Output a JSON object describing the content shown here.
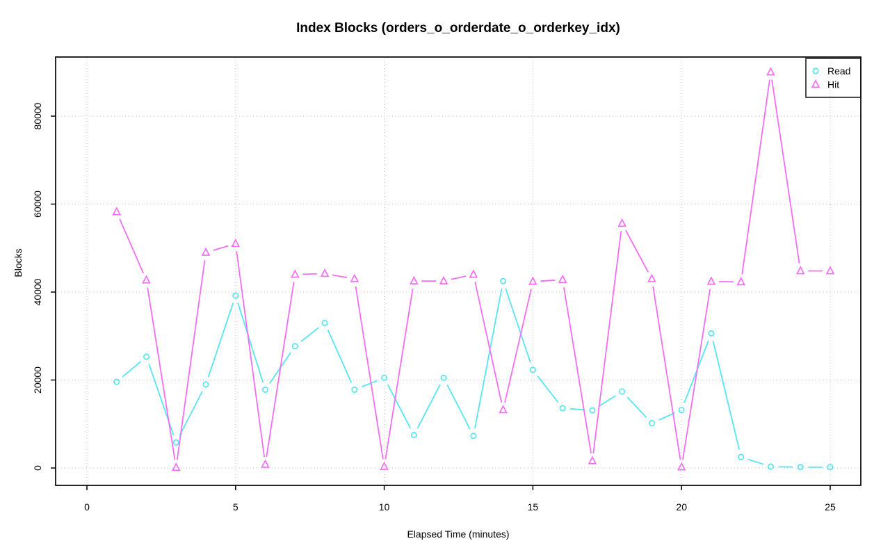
{
  "figure": {
    "background": "#ffffff"
  },
  "chart_data": {
    "type": "line",
    "title": "Index Blocks (orders_o_orderdate_o_orderkey_idx)",
    "xlabel": "Elapsed Time (minutes)",
    "ylabel": "Blocks",
    "x": [
      1,
      2,
      3,
      4,
      5,
      6,
      7,
      8,
      9,
      10,
      11,
      12,
      13,
      14,
      15,
      16,
      17,
      18,
      19,
      20,
      21,
      22,
      23,
      24,
      25
    ],
    "series": [
      {
        "name": "Read",
        "marker": "circle",
        "color": "#55E6F2",
        "values": [
          19600,
          25300,
          5800,
          19000,
          39200,
          17800,
          27700,
          33000,
          17800,
          20500,
          7500,
          20500,
          7300,
          42500,
          22300,
          13600,
          13100,
          17400,
          10200,
          13200,
          30600,
          2500,
          300,
          200,
          200
        ]
      },
      {
        "name": "Hit",
        "marker": "triangle",
        "color": "#F36EF3",
        "values": [
          58200,
          42700,
          100,
          49000,
          51000,
          800,
          44000,
          44200,
          43000,
          300,
          42500,
          42500,
          44000,
          13200,
          42400,
          42800,
          1600,
          55600,
          43000,
          200,
          42400,
          42300,
          90000,
          44800,
          44800
        ]
      }
    ],
    "xticks": [
      0,
      5,
      10,
      15,
      20,
      25
    ],
    "yticks": [
      0,
      20000,
      40000,
      60000,
      80000
    ],
    "xlim": [
      0,
      26
    ],
    "ylim": [
      0,
      93000
    ],
    "grid": true,
    "grid_color": "#C8C8C8",
    "axis_color": "#000000",
    "legend_position": "top-right",
    "legend_labels": [
      "Read",
      "Hit"
    ]
  }
}
